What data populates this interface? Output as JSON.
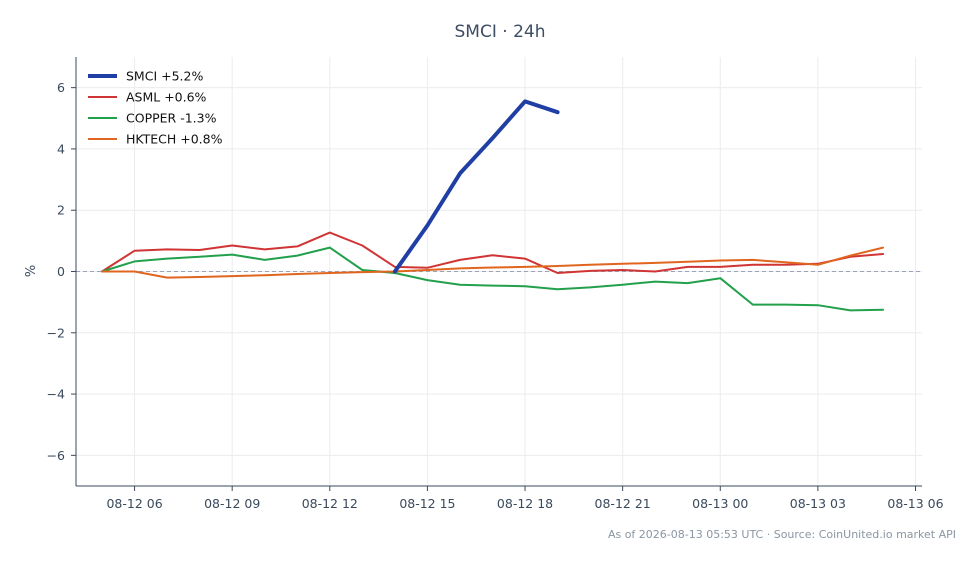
{
  "chart_data": {
    "type": "line",
    "title": "SMCI · 24h",
    "xlabel": "",
    "ylabel": "%",
    "footer": "As of 2026-08-13 05:53 UTC · Source: CoinUnited.io market API",
    "xlim": [
      4.2,
      30.2
    ],
    "ylim": [
      -7,
      7
    ],
    "x_ticks": [
      {
        "x": 6,
        "label": "08-12 06"
      },
      {
        "x": 9,
        "label": "08-12 09"
      },
      {
        "x": 12,
        "label": "08-12 12"
      },
      {
        "x": 15,
        "label": "08-12 15"
      },
      {
        "x": 18,
        "label": "08-12 18"
      },
      {
        "x": 21,
        "label": "08-12 21"
      },
      {
        "x": 24,
        "label": "08-13 00"
      },
      {
        "x": 27,
        "label": "08-13 03"
      },
      {
        "x": 30,
        "label": "08-13 06"
      }
    ],
    "y_ticks": [
      {
        "y": 6,
        "label": "6"
      },
      {
        "y": 4,
        "label": "4"
      },
      {
        "y": 2,
        "label": "2"
      },
      {
        "y": 0,
        "label": "0"
      },
      {
        "y": -2,
        "label": "−2"
      },
      {
        "y": -4,
        "label": "−4"
      },
      {
        "y": -6,
        "label": "−6"
      }
    ],
    "grid": true,
    "zero_line": true,
    "legend_position": "top-left",
    "series": [
      {
        "name": "SMCI +5.2%",
        "color": "#1f3fa5",
        "width": 4,
        "x": [
          14,
          15,
          16,
          17,
          18,
          19
        ],
        "y": [
          0.0,
          1.5,
          3.2,
          4.35,
          5.55,
          5.2
        ]
      },
      {
        "name": "ASML +0.6%",
        "color": "#d13434",
        "width": 2,
        "x": [
          5,
          6,
          7,
          8,
          9,
          10,
          11,
          12,
          13,
          14,
          15,
          16,
          17,
          18,
          19,
          20,
          21,
          22,
          23,
          24,
          25,
          26,
          27,
          28,
          29
        ],
        "y": [
          0.0,
          0.68,
          0.72,
          0.7,
          0.85,
          0.72,
          0.82,
          1.27,
          0.85,
          0.15,
          0.12,
          0.38,
          0.53,
          0.42,
          -0.05,
          0.02,
          0.05,
          0.0,
          0.15,
          0.15,
          0.22,
          0.22,
          0.25,
          0.48,
          0.57
        ]
      },
      {
        "name": "COPPER -1.3%",
        "color": "#22a04b",
        "width": 2,
        "x": [
          5,
          6,
          7,
          8,
          9,
          10,
          11,
          12,
          13,
          14,
          15,
          16,
          17,
          18,
          19,
          20,
          21,
          22,
          23,
          24,
          25,
          26,
          27,
          28,
          29
        ],
        "y": [
          0.0,
          0.33,
          0.42,
          0.48,
          0.55,
          0.38,
          0.52,
          0.78,
          0.05,
          -0.05,
          -0.28,
          -0.43,
          -0.46,
          -0.48,
          -0.58,
          -0.52,
          -0.43,
          -0.33,
          -0.38,
          -0.22,
          -1.08,
          -1.08,
          -1.1,
          -1.27,
          -1.25
        ]
      },
      {
        "name": "HKTECH +0.8%",
        "color": "#e0651e",
        "width": 2,
        "x": [
          5,
          6,
          7,
          8,
          9,
          10,
          11,
          12,
          13,
          14,
          15,
          16,
          17,
          18,
          19,
          20,
          21,
          22,
          23,
          24,
          25,
          26,
          27,
          28,
          29
        ],
        "y": [
          0.0,
          0.0,
          -0.2,
          -0.18,
          -0.15,
          -0.12,
          -0.08,
          -0.05,
          -0.02,
          0.0,
          0.05,
          0.1,
          0.13,
          0.15,
          0.18,
          0.22,
          0.25,
          0.28,
          0.32,
          0.36,
          0.38,
          0.3,
          0.22,
          0.52,
          0.78
        ]
      }
    ]
  }
}
